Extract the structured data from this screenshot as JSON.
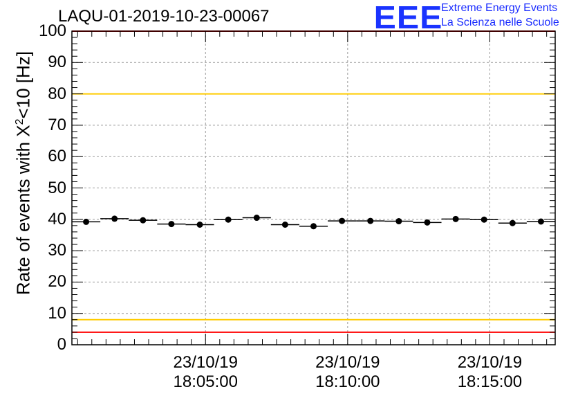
{
  "chart_data": {
    "type": "scatter",
    "title": "LAQU-01-2019-10-23-00067",
    "ylabel_main": "Rate of events with X",
    "ylabel_sup": "2",
    "ylabel_rest": "<10 [Hz]",
    "xlabel": "",
    "ylim": [
      0,
      100
    ],
    "yticks": [
      0,
      10,
      20,
      30,
      40,
      50,
      60,
      70,
      80,
      90,
      100
    ],
    "xlim_minutes": [
      0,
      17
    ],
    "xticks": [
      {
        "at": 4.7,
        "date": "23/10/19",
        "time": "18:05:00"
      },
      {
        "at": 9.7,
        "date": "23/10/19",
        "time": "18:10:00"
      },
      {
        "at": 14.7,
        "date": "23/10/19",
        "time": "18:15:00"
      }
    ],
    "bin_width_minutes": 1,
    "series": [
      {
        "name": "rate",
        "x": [
          0.5,
          1.5,
          2.5,
          3.5,
          4.5,
          5.5,
          6.5,
          7.5,
          8.5,
          9.5,
          10.5,
          11.5,
          12.5,
          13.5,
          14.5,
          15.5,
          16.5
        ],
        "y": [
          39.2,
          40.2,
          39.7,
          38.5,
          38.3,
          39.9,
          40.5,
          38.3,
          37.8,
          39.5,
          39.5,
          39.4,
          39.0,
          40.1,
          39.9,
          38.8,
          39.3
        ]
      }
    ],
    "reference_lines": [
      {
        "y": 100,
        "color": "#ff0000"
      },
      {
        "y": 80,
        "color": "#ffcc00"
      },
      {
        "y": 8,
        "color": "#ffcc00"
      },
      {
        "y": 4,
        "color": "#ff0000"
      }
    ],
    "grid": true
  },
  "logo": {
    "text": "EEE",
    "line1": "Extreme Energy Events",
    "line2": "La Scienza nelle Scuole",
    "color": "#1a33ff"
  }
}
